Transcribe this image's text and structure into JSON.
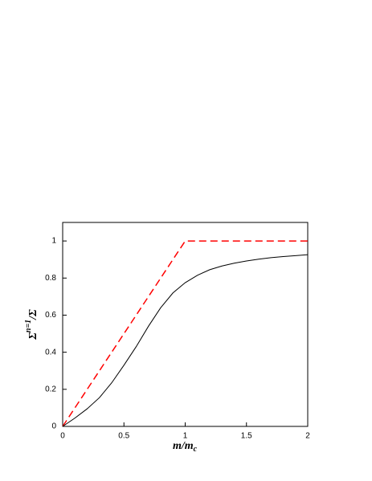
{
  "chart_data": {
    "type": "line",
    "xlabel_parts": [
      "m/m",
      "c"
    ],
    "ylabel_parts": [
      "Σ",
      "n=1",
      "/Σ"
    ],
    "xlim": [
      0,
      2
    ],
    "xticks": [
      0,
      0.5,
      1,
      1.5,
      2
    ],
    "ylim": [
      0,
      1.1
    ],
    "yticks": [
      0,
      0.2,
      0.4,
      0.6,
      0.8,
      1
    ],
    "series": [
      {
        "color": "#ff0000",
        "dashed": true,
        "x": [
          0,
          1,
          2
        ],
        "values": [
          0,
          1,
          1
        ]
      },
      {
        "color": "#000000",
        "dashed": false,
        "x": [
          0,
          0.1,
          0.2,
          0.3,
          0.4,
          0.5,
          0.6,
          0.7,
          0.8,
          0.9,
          1.0,
          1.1,
          1.2,
          1.3,
          1.4,
          1.5,
          1.6,
          1.7,
          1.8,
          1.9,
          2.0
        ],
        "values": [
          0,
          0.045,
          0.095,
          0.155,
          0.235,
          0.33,
          0.43,
          0.54,
          0.64,
          0.72,
          0.775,
          0.815,
          0.845,
          0.865,
          0.88,
          0.892,
          0.902,
          0.91,
          0.916,
          0.921,
          0.926
        ]
      }
    ]
  }
}
